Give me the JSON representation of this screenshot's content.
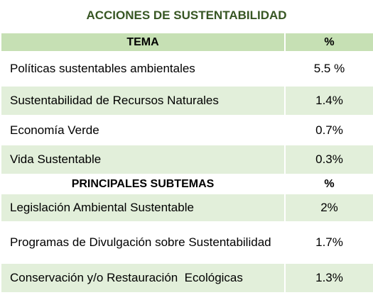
{
  "title": "ACCIONES DE SUSTENTABILIDAD",
  "table": {
    "header": [
      "TEMA",
      "%"
    ],
    "rows": [
      [
        "Políticas sustentables ambientales",
        "5.5 %"
      ],
      [
        "Sustentabilidad de Recursos Naturales",
        "1.4%"
      ],
      [
        "Economía Verde",
        "0.7%"
      ],
      [
        "Vida Sustentable",
        "0.3%"
      ]
    ],
    "subheader": [
      "PRINCIPALES SUBTEMAS",
      "%"
    ],
    "subrows": [
      [
        "Legislación Ambiental Sustentable",
        "2%"
      ],
      [
        "Programas de Divulgación sobre Sustentabilidad",
        "1.7%"
      ],
      [
        "Conservación y/o Restauración  Ecológicas",
        "1.3%"
      ]
    ]
  }
}
